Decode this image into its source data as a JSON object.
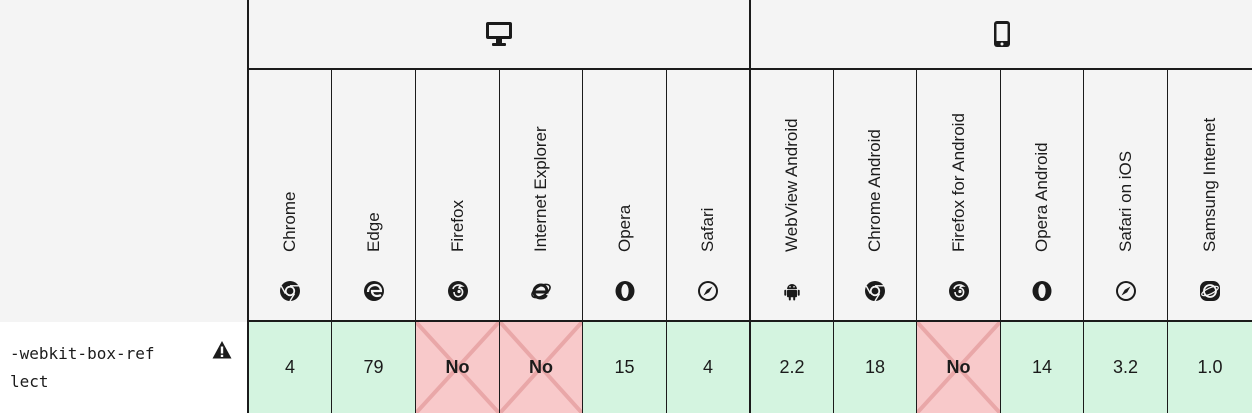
{
  "platforms": [
    {
      "name": "desktop",
      "icon": "desktop-icon"
    },
    {
      "name": "mobile",
      "icon": "mobile-icon"
    }
  ],
  "browsers": [
    {
      "label": "Chrome",
      "icon": "chrome-icon"
    },
    {
      "label": "Edge",
      "icon": "edge-icon"
    },
    {
      "label": "Firefox",
      "icon": "firefox-icon"
    },
    {
      "label": "Internet Explorer",
      "icon": "ie-icon"
    },
    {
      "label": "Opera",
      "icon": "opera-icon"
    },
    {
      "label": "Safari",
      "icon": "safari-icon"
    },
    {
      "label": "WebView Android",
      "icon": "android-icon"
    },
    {
      "label": "Chrome Android",
      "icon": "chrome-icon"
    },
    {
      "label": "Firefox for Android",
      "icon": "firefox-icon"
    },
    {
      "label": "Opera Android",
      "icon": "opera-icon"
    },
    {
      "label": "Safari on iOS",
      "icon": "safari-icon"
    },
    {
      "label": "Samsung Internet",
      "icon": "samsung-internet-icon"
    }
  ],
  "feature": {
    "name": "-webkit-box-reflect",
    "icon": "warning-icon"
  },
  "support": [
    {
      "value": "4",
      "status": "yes"
    },
    {
      "value": "79",
      "status": "yes"
    },
    {
      "value": "No",
      "status": "no"
    },
    {
      "value": "No",
      "status": "no"
    },
    {
      "value": "15",
      "status": "yes"
    },
    {
      "value": "4",
      "status": "yes"
    },
    {
      "value": "2.2",
      "status": "yes"
    },
    {
      "value": "18",
      "status": "yes"
    },
    {
      "value": "No",
      "status": "no"
    },
    {
      "value": "14",
      "status": "yes"
    },
    {
      "value": "3.2",
      "status": "yes"
    },
    {
      "value": "1.0",
      "status": "yes"
    }
  ],
  "colors": {
    "supported": "#d4f4e0",
    "unsupported": "#f8c9ca",
    "header": "#f4f4f4",
    "border": "#1b1b1b"
  }
}
